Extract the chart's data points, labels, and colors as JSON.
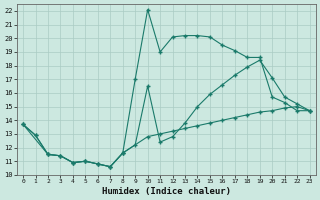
{
  "xlabel": "Humidex (Indice chaleur)",
  "bg_color": "#cce8e0",
  "grid_color": "#aaccc4",
  "line_color": "#1a7a6a",
  "xlim": [
    -0.5,
    23.5
  ],
  "ylim": [
    10,
    22.5
  ],
  "xticks": [
    0,
    1,
    2,
    3,
    4,
    5,
    6,
    7,
    8,
    9,
    10,
    11,
    12,
    13,
    14,
    15,
    16,
    17,
    18,
    19,
    20,
    21,
    22,
    23
  ],
  "yticks": [
    10,
    11,
    12,
    13,
    14,
    15,
    16,
    17,
    18,
    19,
    20,
    21,
    22
  ],
  "line1_x": [
    0,
    1,
    2,
    3,
    4,
    5,
    6,
    7,
    8,
    9,
    10,
    11,
    12,
    13,
    14,
    15,
    16,
    17,
    18,
    19,
    20,
    21,
    22,
    23
  ],
  "line1_y": [
    13.7,
    12.9,
    11.5,
    11.4,
    10.9,
    11.0,
    10.8,
    10.6,
    11.6,
    17.0,
    22.1,
    19.0,
    20.1,
    20.2,
    20.2,
    20.1,
    19.5,
    19.1,
    18.6,
    18.6,
    15.7,
    15.3,
    14.7,
    14.7
  ],
  "line2_x": [
    0,
    2,
    3,
    4,
    5,
    6,
    7,
    8,
    9,
    10,
    11,
    12,
    13,
    14,
    15,
    16,
    17,
    18,
    19,
    20,
    21,
    22,
    23
  ],
  "line2_y": [
    13.7,
    11.5,
    11.4,
    10.9,
    11.0,
    10.8,
    10.6,
    11.6,
    12.2,
    16.5,
    12.4,
    12.8,
    13.8,
    15.0,
    15.9,
    16.6,
    17.3,
    17.9,
    18.4,
    17.1,
    15.7,
    15.2,
    14.7
  ],
  "line3_x": [
    0,
    1,
    2,
    3,
    4,
    5,
    6,
    7,
    8,
    10,
    11,
    12,
    13,
    14,
    15,
    16,
    17,
    18,
    19,
    20,
    21,
    22,
    23
  ],
  "line3_y": [
    13.7,
    12.9,
    11.5,
    11.4,
    10.9,
    11.0,
    10.8,
    10.6,
    11.6,
    12.8,
    13.0,
    13.2,
    13.4,
    13.6,
    13.8,
    14.0,
    14.2,
    14.4,
    14.6,
    14.7,
    14.9,
    15.0,
    14.7
  ]
}
